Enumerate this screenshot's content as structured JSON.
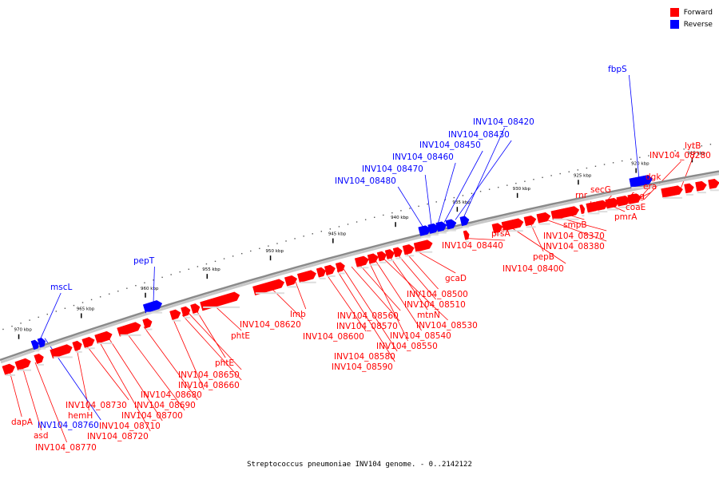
{
  "legend": {
    "forward_label": "Forward",
    "reverse_label": "Reverse",
    "forward_color": "#ff0000",
    "reverse_color": "#0000ff"
  },
  "caption": "Streptococcus pneumoniae INV104 genome. - 0..2142122",
  "ticks": [
    "915 kbp",
    "920 kbp",
    "925 kbp",
    "930 kbp",
    "935 kbp",
    "940 kbp",
    "945 kbp",
    "950 kbp",
    "955 kbp",
    "960 kbp",
    "965 kbp",
    "970 kbp"
  ],
  "gene_labels": [
    "fbpS",
    "lytB",
    "INV104_08280",
    "dgk",
    "era",
    "coaE",
    "fpg",
    "pmrA",
    "secG",
    "rnr",
    "smpB",
    "INV104_08370",
    "INV104_08380",
    "pepB",
    "INV104_08400",
    "prsA",
    "INV104_08440",
    "INV104_08420",
    "INV104_08430",
    "INV104_08450",
    "INV104_08460",
    "INV104_08470",
    "INV104_08480",
    "gcaD",
    "INV104_08500",
    "INV104_08510",
    "mtnN",
    "INV104_08530",
    "INV104_08540",
    "INV104_08550",
    "INV104_08560",
    "INV104_08570",
    "INV104_08580",
    "INV104_08590",
    "INV104_08600",
    "lmb",
    "INV104_08620",
    "pepT",
    "phtE",
    "phtE",
    "INV104_08650",
    "INV104_08660",
    "INV104_08680",
    "INV104_08690",
    "INV104_08700",
    "INV104_08710",
    "INV104_08720",
    "INV104_08730",
    "hemH",
    "mscL",
    "INV104_08760",
    "INV104_08770",
    "asd",
    "dapA"
  ]
}
